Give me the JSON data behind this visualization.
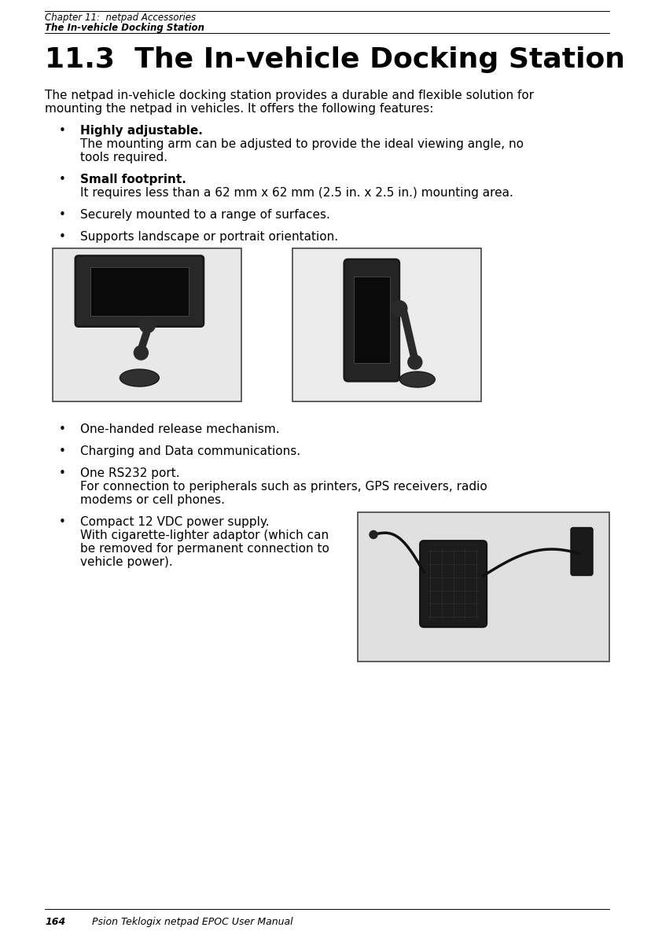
{
  "page_bg": "#ffffff",
  "header_line1": "Chapter 11:  netpad Accessories",
  "header_line2": "The In-vehicle Docking Station",
  "section_title": "11.3  The In-vehicle Docking Station",
  "intro_line1": "The netpad in-vehicle docking station provides a durable and flexible solution for",
  "intro_line2": "mounting the netpad in vehicles. It offers the following features:",
  "footer_page": "164",
  "footer_text": "Psion Teklogix netpad EPOC User Manual"
}
